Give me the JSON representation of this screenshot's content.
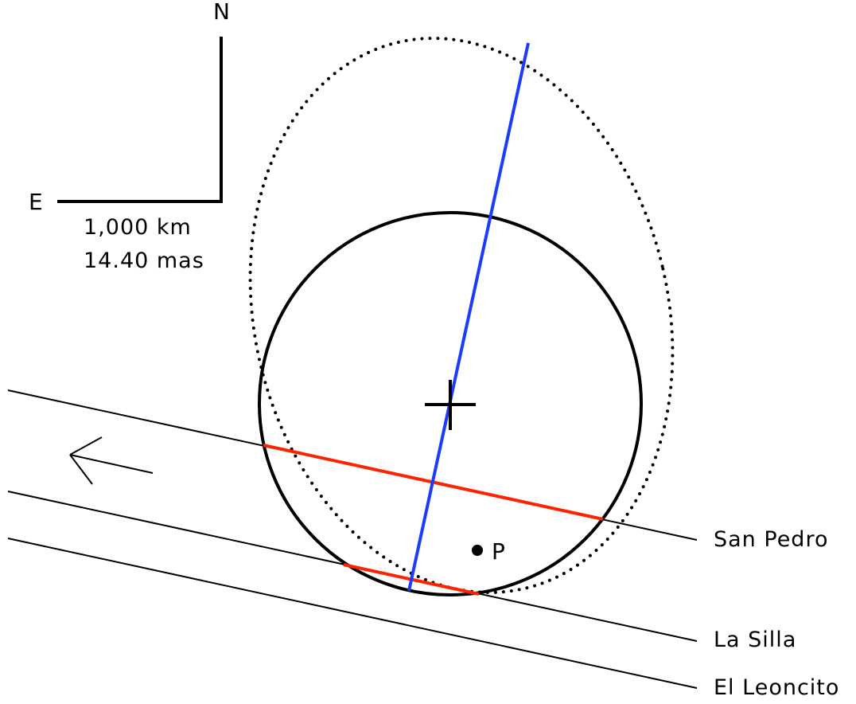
{
  "compass": {
    "north_label": "N",
    "east_label": "E"
  },
  "scale": {
    "distance_label": "1,000 km",
    "angular_label": "14.40 mas"
  },
  "point_label": "P",
  "chords": [
    {
      "station": "San Pedro",
      "color": "#ff2200"
    },
    {
      "station": "La Silla",
      "color": "#ff2200"
    },
    {
      "station": "El Leoncito",
      "color": null
    }
  ],
  "colors": {
    "chord": "#ff2200",
    "axis": "#1a3cff",
    "ink": "#000000"
  },
  "icons": {
    "motion_direction": "arrow-left-icon",
    "center": "plus-cross-icon"
  }
}
